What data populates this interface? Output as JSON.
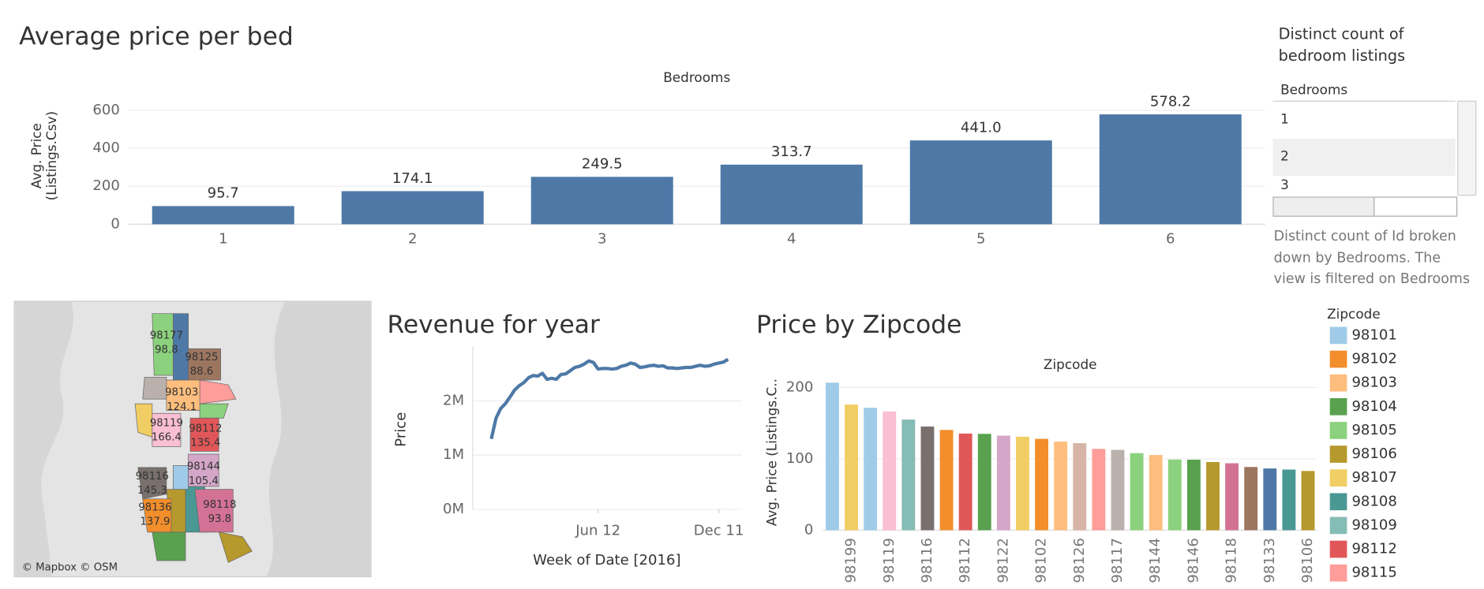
{
  "chart_data": [
    {
      "type": "bar",
      "title": "Average price per bed",
      "header": "Bedrooms",
      "ylabel": "Avg. Price (Listings.Csv)",
      "categories": [
        "1",
        "2",
        "3",
        "4",
        "5",
        "6"
      ],
      "values": [
        95.7,
        174.1,
        249.5,
        313.7,
        441.0,
        578.2
      ],
      "value_labels": [
        "95.7",
        "174.1",
        "249.5",
        "313.7",
        "441.0",
        "578.2"
      ],
      "color": "#4e79a7",
      "ylim": [
        0,
        650
      ],
      "yticks": [
        0,
        200,
        400,
        600
      ],
      "grid": true
    },
    {
      "type": "map",
      "attribution": "© Mapbox © OSM",
      "regions": [
        {
          "name": "98177",
          "value": 98.8,
          "color": "#8cd17d"
        },
        {
          "name": "98125",
          "value": 88.6,
          "color": "#9d7660"
        },
        {
          "name": "98103",
          "value": 124.1,
          "color": "#ffbe7d"
        },
        {
          "name": "98119",
          "value": 166.4,
          "color": "#fabfd2"
        },
        {
          "name": "98112",
          "value": 135.4,
          "color": "#e15759"
        },
        {
          "name": "98144",
          "value": 105.4,
          "color": "#d4a6c8"
        },
        {
          "name": "98116",
          "value": 145.3,
          "color": "#79706e"
        },
        {
          "name": "98136",
          "value": 137.9,
          "color": "#f28e2b"
        },
        {
          "name": "98118",
          "value": 93.8,
          "color": "#d37295"
        }
      ]
    },
    {
      "type": "line",
      "title": "Revenue for year",
      "ylabel": "Price",
      "xlabel": "Week of Date [2016]",
      "color": "#4e79a7",
      "x": [
        "2016-01-03",
        "2016-01-10",
        "2016-01-17",
        "2016-01-24",
        "2016-01-31",
        "2016-02-07",
        "2016-02-14",
        "2016-02-21",
        "2016-02-28",
        "2016-03-06",
        "2016-03-13",
        "2016-03-20",
        "2016-03-27",
        "2016-04-03",
        "2016-04-10",
        "2016-04-17",
        "2016-04-24",
        "2016-05-01",
        "2016-05-08",
        "2016-05-15",
        "2016-05-22",
        "2016-05-29",
        "2016-06-05",
        "2016-06-12",
        "2016-06-19",
        "2016-06-26",
        "2016-07-03",
        "2016-07-10",
        "2016-07-17",
        "2016-07-24",
        "2016-07-31",
        "2016-08-07",
        "2016-08-14",
        "2016-08-21",
        "2016-08-28",
        "2016-09-04",
        "2016-09-11",
        "2016-09-18",
        "2016-09-25",
        "2016-10-02",
        "2016-10-09",
        "2016-10-16",
        "2016-10-23",
        "2016-10-30",
        "2016-11-06",
        "2016-11-13",
        "2016-11-20",
        "2016-11-27",
        "2016-12-04",
        "2016-12-11",
        "2016-12-18",
        "2016-12-25"
      ],
      "values": [
        1300000,
        1680000,
        1860000,
        1950000,
        2070000,
        2200000,
        2280000,
        2340000,
        2430000,
        2470000,
        2460000,
        2510000,
        2400000,
        2420000,
        2400000,
        2490000,
        2500000,
        2560000,
        2620000,
        2640000,
        2680000,
        2740000,
        2710000,
        2590000,
        2600000,
        2600000,
        2590000,
        2600000,
        2640000,
        2660000,
        2700000,
        2680000,
        2620000,
        2630000,
        2650000,
        2660000,
        2640000,
        2650000,
        2610000,
        2610000,
        2600000,
        2610000,
        2620000,
        2620000,
        2640000,
        2660000,
        2640000,
        2650000,
        2680000,
        2700000,
        2720000,
        2770000
      ],
      "xlim": [
        "2015-12-06",
        "2017-01-15"
      ],
      "xticks": [
        {
          "value": "2016-06-12",
          "label": "Jun 12"
        },
        {
          "value": "2016-12-11",
          "label": "Dec 11"
        }
      ],
      "ylim": [
        0,
        3000000
      ],
      "yticks": [
        {
          "value": 0,
          "label": "0M"
        },
        {
          "value": 1000000,
          "label": "1M"
        },
        {
          "value": 2000000,
          "label": "2M"
        }
      ],
      "grid": true
    },
    {
      "type": "bar",
      "title": "Price by Zipcode",
      "header": "Zipcode",
      "ylabel": "Avg. Price (Listings.C..",
      "categories": [
        null,
        "98199",
        null,
        "98119",
        null,
        "98116",
        null,
        "98112",
        null,
        "98122",
        null,
        "98102",
        null,
        "98126",
        null,
        "98117",
        null,
        "98144",
        null,
        "98146",
        null,
        "98118",
        null,
        "98133",
        null,
        "98106"
      ],
      "values": [
        206.7,
        176.0,
        171.5,
        166.4,
        155.0,
        145.3,
        140.5,
        135.4,
        135.0,
        132.5,
        131.0,
        128.0,
        124.1,
        122.0,
        114.0,
        112.5,
        108.0,
        105.4,
        99.0,
        98.8,
        95.5,
        93.8,
        88.6,
        86.5,
        85.0,
        83.0
      ],
      "colors": [
        "#a0cbe8",
        "#f1ce63",
        "#a0cbe8",
        "#fabfd2",
        "#86bcb6",
        "#79706e",
        "#f28e2b",
        "#e15759",
        "#59a14f",
        "#d4a6c8",
        "#f1ce63",
        "#f28e2b",
        "#ffbe7d",
        "#d7b5a6",
        "#ff9d9a",
        "#bab0ac",
        "#8cd17d",
        "#ffbe7d",
        "#8cd17d",
        "#59a14f",
        "#b6992d",
        "#d37295",
        "#9d7660",
        "#4e79a7",
        "#499894",
        "#b6992d"
      ],
      "ylim": [
        0,
        217
      ],
      "yticks": [
        0,
        100,
        200
      ],
      "grid": true,
      "legend": {
        "title": "Zipcode",
        "items": [
          {
            "name": "98101",
            "color": "#a0cbe8"
          },
          {
            "name": "98102",
            "color": "#f28e2b"
          },
          {
            "name": "98103",
            "color": "#ffbe7d"
          },
          {
            "name": "98104",
            "color": "#59a14f"
          },
          {
            "name": "98105",
            "color": "#8cd17d"
          },
          {
            "name": "98106",
            "color": "#b6992d"
          },
          {
            "name": "98107",
            "color": "#f1ce63"
          },
          {
            "name": "98108",
            "color": "#499894"
          },
          {
            "name": "98109",
            "color": "#86bcb6"
          },
          {
            "name": "98112",
            "color": "#e15759"
          },
          {
            "name": "98115",
            "color": "#ff9d9a"
          }
        ]
      }
    }
  ],
  "sidebar": {
    "title": "Distinct count of bedroom listings",
    "column": "Bedrooms",
    "rows": [
      "1",
      "2",
      "3"
    ],
    "caption": "Distinct count of Id broken down by Bedrooms. The view is filtered on Bedrooms"
  }
}
